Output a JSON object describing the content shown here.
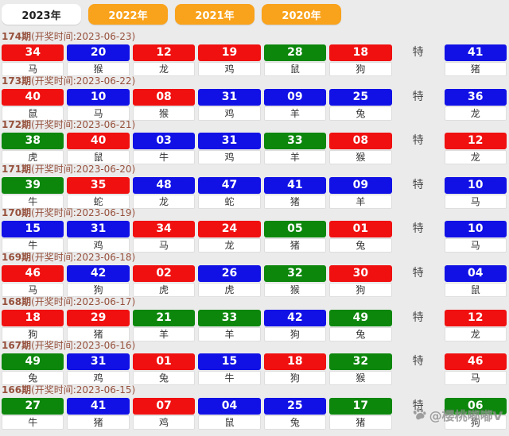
{
  "colors": {
    "red": "#f01010",
    "blue": "#1111e6",
    "green": "#0c870c",
    "tab_orange": "#f9a21b",
    "header_text": "#96503c"
  },
  "tabs": [
    {
      "label": "2023年",
      "active": true
    },
    {
      "label": "2022年",
      "active": false
    },
    {
      "label": "2021年",
      "active": false
    },
    {
      "label": "2020年",
      "active": false
    }
  ],
  "special_label": "特",
  "watermark": {
    "text": "@樱桃嘟嘟V",
    "icon": "paw-icon"
  },
  "draws": [
    {
      "period": "174期",
      "time_label": "(开奖时间:2023-06-23)",
      "numbers": [
        {
          "num": "34",
          "color": "red",
          "zodiac": "马"
        },
        {
          "num": "20",
          "color": "blue",
          "zodiac": "猴"
        },
        {
          "num": "12",
          "color": "red",
          "zodiac": "龙"
        },
        {
          "num": "19",
          "color": "red",
          "zodiac": "鸡"
        },
        {
          "num": "28",
          "color": "green",
          "zodiac": "鼠"
        },
        {
          "num": "18",
          "color": "red",
          "zodiac": "狗"
        }
      ],
      "special": {
        "num": "41",
        "color": "blue",
        "zodiac": "猪"
      }
    },
    {
      "period": "173期",
      "time_label": "(开奖时间:2023-06-22)",
      "numbers": [
        {
          "num": "40",
          "color": "red",
          "zodiac": "鼠"
        },
        {
          "num": "10",
          "color": "blue",
          "zodiac": "马"
        },
        {
          "num": "08",
          "color": "red",
          "zodiac": "猴"
        },
        {
          "num": "31",
          "color": "blue",
          "zodiac": "鸡"
        },
        {
          "num": "09",
          "color": "blue",
          "zodiac": "羊"
        },
        {
          "num": "25",
          "color": "blue",
          "zodiac": "兔"
        }
      ],
      "special": {
        "num": "36",
        "color": "blue",
        "zodiac": "龙"
      }
    },
    {
      "period": "172期",
      "time_label": "(开奖时间:2023-06-21)",
      "numbers": [
        {
          "num": "38",
          "color": "green",
          "zodiac": "虎"
        },
        {
          "num": "40",
          "color": "red",
          "zodiac": "鼠"
        },
        {
          "num": "03",
          "color": "blue",
          "zodiac": "牛"
        },
        {
          "num": "31",
          "color": "blue",
          "zodiac": "鸡"
        },
        {
          "num": "33",
          "color": "green",
          "zodiac": "羊"
        },
        {
          "num": "08",
          "color": "red",
          "zodiac": "猴"
        }
      ],
      "special": {
        "num": "12",
        "color": "red",
        "zodiac": "龙"
      }
    },
    {
      "period": "171期",
      "time_label": "(开奖时间:2023-06-20)",
      "numbers": [
        {
          "num": "39",
          "color": "green",
          "zodiac": "牛"
        },
        {
          "num": "35",
          "color": "red",
          "zodiac": "蛇"
        },
        {
          "num": "48",
          "color": "blue",
          "zodiac": "龙"
        },
        {
          "num": "47",
          "color": "blue",
          "zodiac": "蛇"
        },
        {
          "num": "41",
          "color": "blue",
          "zodiac": "猪"
        },
        {
          "num": "09",
          "color": "blue",
          "zodiac": "羊"
        }
      ],
      "special": {
        "num": "10",
        "color": "blue",
        "zodiac": "马"
      }
    },
    {
      "period": "170期",
      "time_label": "(开奖时间:2023-06-19)",
      "numbers": [
        {
          "num": "15",
          "color": "blue",
          "zodiac": "牛"
        },
        {
          "num": "31",
          "color": "blue",
          "zodiac": "鸡"
        },
        {
          "num": "34",
          "color": "red",
          "zodiac": "马"
        },
        {
          "num": "24",
          "color": "red",
          "zodiac": "龙"
        },
        {
          "num": "05",
          "color": "green",
          "zodiac": "猪"
        },
        {
          "num": "01",
          "color": "red",
          "zodiac": "兔"
        }
      ],
      "special": {
        "num": "10",
        "color": "blue",
        "zodiac": "马"
      }
    },
    {
      "period": "169期",
      "time_label": "(开奖时间:2023-06-18)",
      "numbers": [
        {
          "num": "46",
          "color": "red",
          "zodiac": "马"
        },
        {
          "num": "42",
          "color": "blue",
          "zodiac": "狗"
        },
        {
          "num": "02",
          "color": "red",
          "zodiac": "虎"
        },
        {
          "num": "26",
          "color": "blue",
          "zodiac": "虎"
        },
        {
          "num": "32",
          "color": "green",
          "zodiac": "猴"
        },
        {
          "num": "30",
          "color": "red",
          "zodiac": "狗"
        }
      ],
      "special": {
        "num": "04",
        "color": "blue",
        "zodiac": "鼠"
      }
    },
    {
      "period": "168期",
      "time_label": "(开奖时间:2023-06-17)",
      "numbers": [
        {
          "num": "18",
          "color": "red",
          "zodiac": "狗"
        },
        {
          "num": "29",
          "color": "red",
          "zodiac": "猪"
        },
        {
          "num": "21",
          "color": "green",
          "zodiac": "羊"
        },
        {
          "num": "33",
          "color": "green",
          "zodiac": "羊"
        },
        {
          "num": "42",
          "color": "blue",
          "zodiac": "狗"
        },
        {
          "num": "49",
          "color": "green",
          "zodiac": "兔"
        }
      ],
      "special": {
        "num": "12",
        "color": "red",
        "zodiac": "龙"
      }
    },
    {
      "period": "167期",
      "time_label": "(开奖时间:2023-06-16)",
      "numbers": [
        {
          "num": "49",
          "color": "green",
          "zodiac": "兔"
        },
        {
          "num": "31",
          "color": "blue",
          "zodiac": "鸡"
        },
        {
          "num": "01",
          "color": "red",
          "zodiac": "兔"
        },
        {
          "num": "15",
          "color": "blue",
          "zodiac": "牛"
        },
        {
          "num": "18",
          "color": "red",
          "zodiac": "狗"
        },
        {
          "num": "32",
          "color": "green",
          "zodiac": "猴"
        }
      ],
      "special": {
        "num": "46",
        "color": "red",
        "zodiac": "马"
      }
    },
    {
      "period": "166期",
      "time_label": "(开奖时间:2023-06-15)",
      "numbers": [
        {
          "num": "27",
          "color": "green",
          "zodiac": "牛"
        },
        {
          "num": "41",
          "color": "blue",
          "zodiac": "猪"
        },
        {
          "num": "07",
          "color": "red",
          "zodiac": "鸡"
        },
        {
          "num": "04",
          "color": "blue",
          "zodiac": "鼠"
        },
        {
          "num": "25",
          "color": "blue",
          "zodiac": "兔"
        },
        {
          "num": "17",
          "color": "green",
          "zodiac": "猪"
        }
      ],
      "special": {
        "num": "06",
        "color": "green",
        "zodiac": "狗"
      }
    }
  ]
}
